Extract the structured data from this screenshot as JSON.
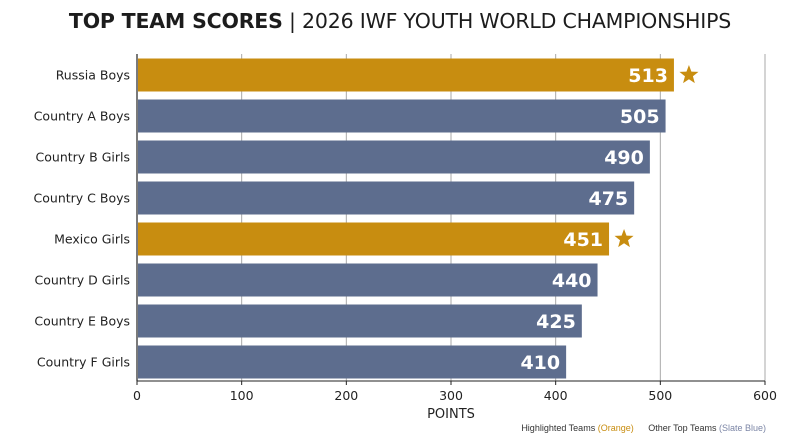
{
  "title": {
    "bold": "TOP TEAM SCORES",
    "separator": "|",
    "rest": "2026 IWF YOUTH WORLD CHAMPIONSHIPS"
  },
  "colors": {
    "highlight": "#c88d10",
    "other": "#5d6d8e",
    "gridline": "#a9a9a9",
    "axis": "#222222",
    "label_text": "#ffffff"
  },
  "legend": {
    "highlight_label": "Highlighted Teams",
    "highlight_paren": "(Orange)",
    "other_label": "Other Top Teams",
    "other_paren": "(Slate Blue)"
  },
  "chart_data": {
    "type": "bar",
    "orientation": "horizontal",
    "title": "TOP TEAM SCORES | 2026 IWF YOUTH WORLD CHAMPIONSHIPS",
    "xlabel": "POINTS",
    "ylabel": "",
    "xlim": [
      0,
      600
    ],
    "xticks": [
      0,
      100,
      200,
      300,
      400,
      500,
      600
    ],
    "grid": "vertical",
    "legend_position": "bottom-right",
    "categories": [
      "Russia Boys",
      "Country A Boys",
      "Country B Girls",
      "Country C Boys",
      "Mexico Girls",
      "Country D Girls",
      "Country E Boys",
      "Country F Girls"
    ],
    "values": [
      513,
      505,
      490,
      475,
      451,
      440,
      425,
      410
    ],
    "highlighted": [
      true,
      false,
      false,
      false,
      true,
      false,
      false,
      false
    ],
    "highlight_marker": "star-icon"
  }
}
